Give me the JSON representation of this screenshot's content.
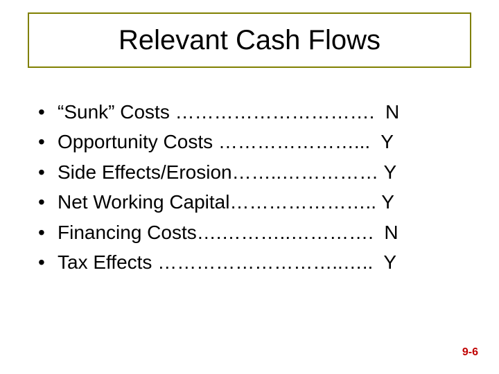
{
  "title": "Relevant Cash Flows",
  "title_border_color": "#808000",
  "bullets": [
    {
      "text": "“Sunk” Costs ………………………….  N"
    },
    {
      "text": "Opportunity Costs …………………...  Y"
    },
    {
      "text": "Side Effects/Erosion……..…………… Y"
    },
    {
      "text": "Net Working Capital………………….. Y"
    },
    {
      "text": "Financing Costs….………..………….  N"
    },
    {
      "text": "Tax Effects ………………………..…..  Y"
    }
  ],
  "page_number": "9-6",
  "page_number_color": "#c00000",
  "text_color": "#000000",
  "background_color": "#ffffff",
  "title_fontsize": 40,
  "body_fontsize": 28
}
